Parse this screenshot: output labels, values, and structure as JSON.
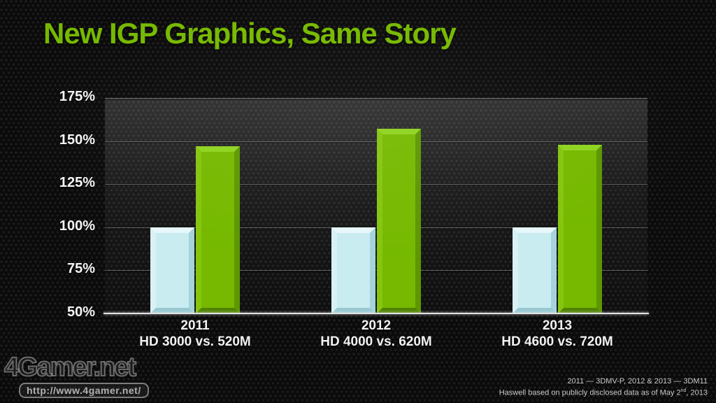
{
  "title": "New IGP Graphics, Same Story",
  "chart_data": {
    "type": "bar",
    "title": "",
    "xlabel": "",
    "ylabel": "",
    "ylim": [
      50,
      175
    ],
    "ytick_step": 25,
    "yticks": [
      "175%",
      "150%",
      "125%",
      "100%",
      "75%",
      "50%"
    ],
    "grid": true,
    "legend": "none",
    "categories": [
      "2011",
      "2012",
      "2013"
    ],
    "category_sublabels": [
      "HD 3000 vs. 520M",
      "HD 4000 vs. 620M",
      "HD 4600 vs. 720M"
    ],
    "series": [
      {
        "name": "blue-baseline",
        "color": "#c9ecf1",
        "values": [
          100,
          100,
          100
        ]
      },
      {
        "name": "green",
        "color": "#76b900",
        "values": [
          147,
          157,
          148
        ]
      }
    ]
  },
  "footnote": {
    "line1": "2011 — 3DMV-P, 2012 & 2013 — 3DM11",
    "line2_pre": "Haswell based on publicly disclosed data as of May 2",
    "line2_sup": "nd",
    "line2_post": ", 2013"
  },
  "watermark": {
    "logo": "4Gamer.net",
    "url": "http://www.4gamer.net/"
  },
  "colors": {
    "title_green": "#76b900",
    "bar_green": "#76b900",
    "bar_blue": "#c9ecf1",
    "background": "#0b0b0b",
    "tick_text": "#f5f5f5"
  }
}
